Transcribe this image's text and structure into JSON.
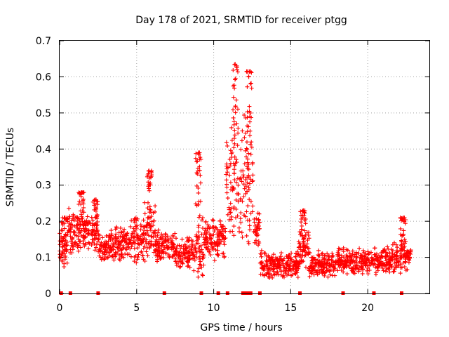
{
  "chart_data": {
    "type": "scatter",
    "title": "Day 178 of 2021, SRMTID for receiver ptgg",
    "xlabel": "GPS time / hours",
    "ylabel": "SRMTID / TECUs",
    "xlim": [
      0,
      24
    ],
    "ylim": [
      0,
      0.7
    ],
    "x_ticks": [
      0,
      5,
      10,
      15,
      20
    ],
    "x_tick_labels": [
      "0",
      "5",
      "10",
      "15",
      "20"
    ],
    "y_ticks": [
      0,
      0.1,
      0.2,
      0.3,
      0.4,
      0.5,
      0.6,
      0.7
    ],
    "y_tick_labels": [
      "0",
      "0.1",
      "0.2",
      "0.3",
      "0.4",
      "0.5",
      "0.6",
      "0.7"
    ],
    "grid": true,
    "marker": "+",
    "series_color": "#ff0000",
    "data_gap_markers_hours": [
      0.1,
      0.7,
      2.5,
      6.8,
      9.2,
      10.3,
      10.9,
      11.9,
      12.05,
      12.2,
      12.4,
      13.0,
      15.6,
      18.4,
      20.4,
      22.2
    ],
    "envelope": [
      {
        "start": 0.0,
        "end": 0.5,
        "base": 0.12,
        "spread": 0.06
      },
      {
        "start": 0.5,
        "end": 1.5,
        "base": 0.17,
        "spread": 0.07
      },
      {
        "start": 1.5,
        "end": 2.5,
        "base": 0.17,
        "spread": 0.06
      },
      {
        "start": 2.5,
        "end": 3.5,
        "base": 0.13,
        "spread": 0.05
      },
      {
        "start": 3.5,
        "end": 4.5,
        "base": 0.14,
        "spread": 0.06
      },
      {
        "start": 4.5,
        "end": 5.5,
        "base": 0.15,
        "spread": 0.07
      },
      {
        "start": 5.5,
        "end": 6.2,
        "base": 0.17,
        "spread": 0.09
      },
      {
        "start": 6.2,
        "end": 7.5,
        "base": 0.13,
        "spread": 0.05
      },
      {
        "start": 7.5,
        "end": 8.8,
        "base": 0.11,
        "spread": 0.05
      },
      {
        "start": 8.8,
        "end": 9.4,
        "base": 0.14,
        "spread": 0.12
      },
      {
        "start": 9.4,
        "end": 10.8,
        "base": 0.15,
        "spread": 0.06
      },
      {
        "start": 10.8,
        "end": 11.8,
        "base": 0.3,
        "spread": 0.2
      },
      {
        "start": 11.8,
        "end": 12.6,
        "base": 0.32,
        "spread": 0.22
      },
      {
        "start": 12.6,
        "end": 13.0,
        "base": 0.18,
        "spread": 0.05
      },
      {
        "start": 13.0,
        "end": 15.5,
        "base": 0.08,
        "spread": 0.04
      },
      {
        "start": 15.5,
        "end": 16.2,
        "base": 0.12,
        "spread": 0.07
      },
      {
        "start": 16.2,
        "end": 18.0,
        "base": 0.08,
        "spread": 0.04
      },
      {
        "start": 18.0,
        "end": 20.0,
        "base": 0.09,
        "spread": 0.04
      },
      {
        "start": 20.0,
        "end": 21.5,
        "base": 0.09,
        "spread": 0.04
      },
      {
        "start": 21.5,
        "end": 22.8,
        "base": 0.1,
        "spread": 0.05
      }
    ],
    "peaks": [
      {
        "x": 0.3,
        "y": 0.21
      },
      {
        "x": 1.4,
        "y": 0.28
      },
      {
        "x": 2.3,
        "y": 0.26
      },
      {
        "x": 5.8,
        "y": 0.34
      },
      {
        "x": 9.0,
        "y": 0.39
      },
      {
        "x": 11.4,
        "y": 0.635
      },
      {
        "x": 12.3,
        "y": 0.615
      },
      {
        "x": 15.8,
        "y": 0.23
      },
      {
        "x": 22.3,
        "y": 0.21
      }
    ]
  }
}
